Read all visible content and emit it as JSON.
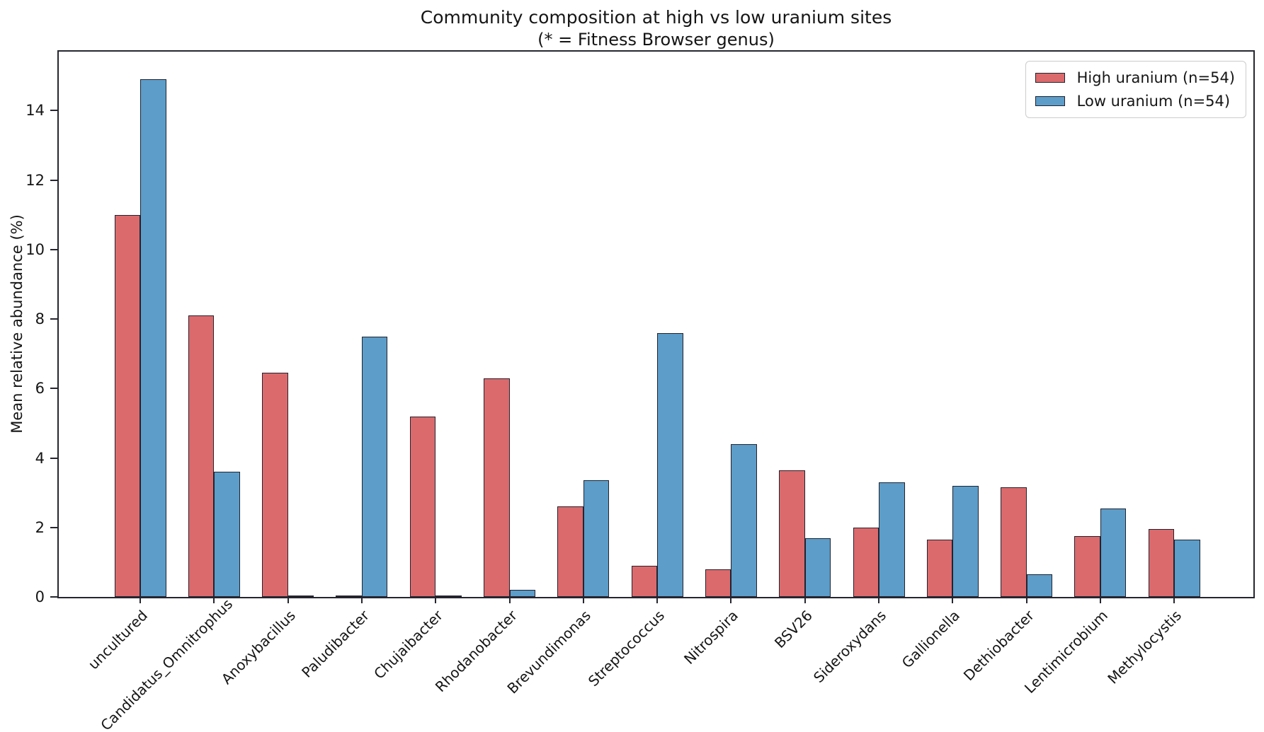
{
  "chart_data": {
    "type": "bar",
    "title": "Community composition at high vs low uranium sites",
    "subtitle": "(* = Fitness Browser genus)",
    "ylabel": "Mean relative abundance (%)",
    "ylim": [
      0,
      15.7
    ],
    "yticks": [
      0,
      2,
      4,
      6,
      8,
      10,
      12,
      14
    ],
    "grid": false,
    "legend_position": "upper right",
    "categories": [
      "uncultured",
      "Candidatus_Omnitrophus",
      "Anoxybacillus",
      "Paludibacter",
      "Chujaibacter",
      "Rhodanobacter",
      "Brevundimonas",
      "Streptococcus",
      "Nitrospira",
      "BSV26",
      "Sideroxydans",
      "Gallionella",
      "Dethiobacter",
      "Lentimicrobium",
      "Methylocystis"
    ],
    "series": [
      {
        "name": "High uranium (n=54)",
        "color": "#DB6A6D",
        "values": [
          11.0,
          8.1,
          6.45,
          0,
          5.2,
          6.3,
          2.6,
          0.9,
          0.8,
          3.65,
          2.0,
          1.65,
          3.15,
          1.75,
          1.95
        ]
      },
      {
        "name": "Low uranium (n=54)",
        "color": "#5C9DC9",
        "values": [
          14.9,
          3.6,
          0,
          7.5,
          0,
          0.2,
          3.35,
          7.6,
          4.4,
          1.7,
          3.3,
          3.2,
          0.65,
          2.55,
          1.65
        ]
      }
    ],
    "edge_color": "#23232E"
  }
}
